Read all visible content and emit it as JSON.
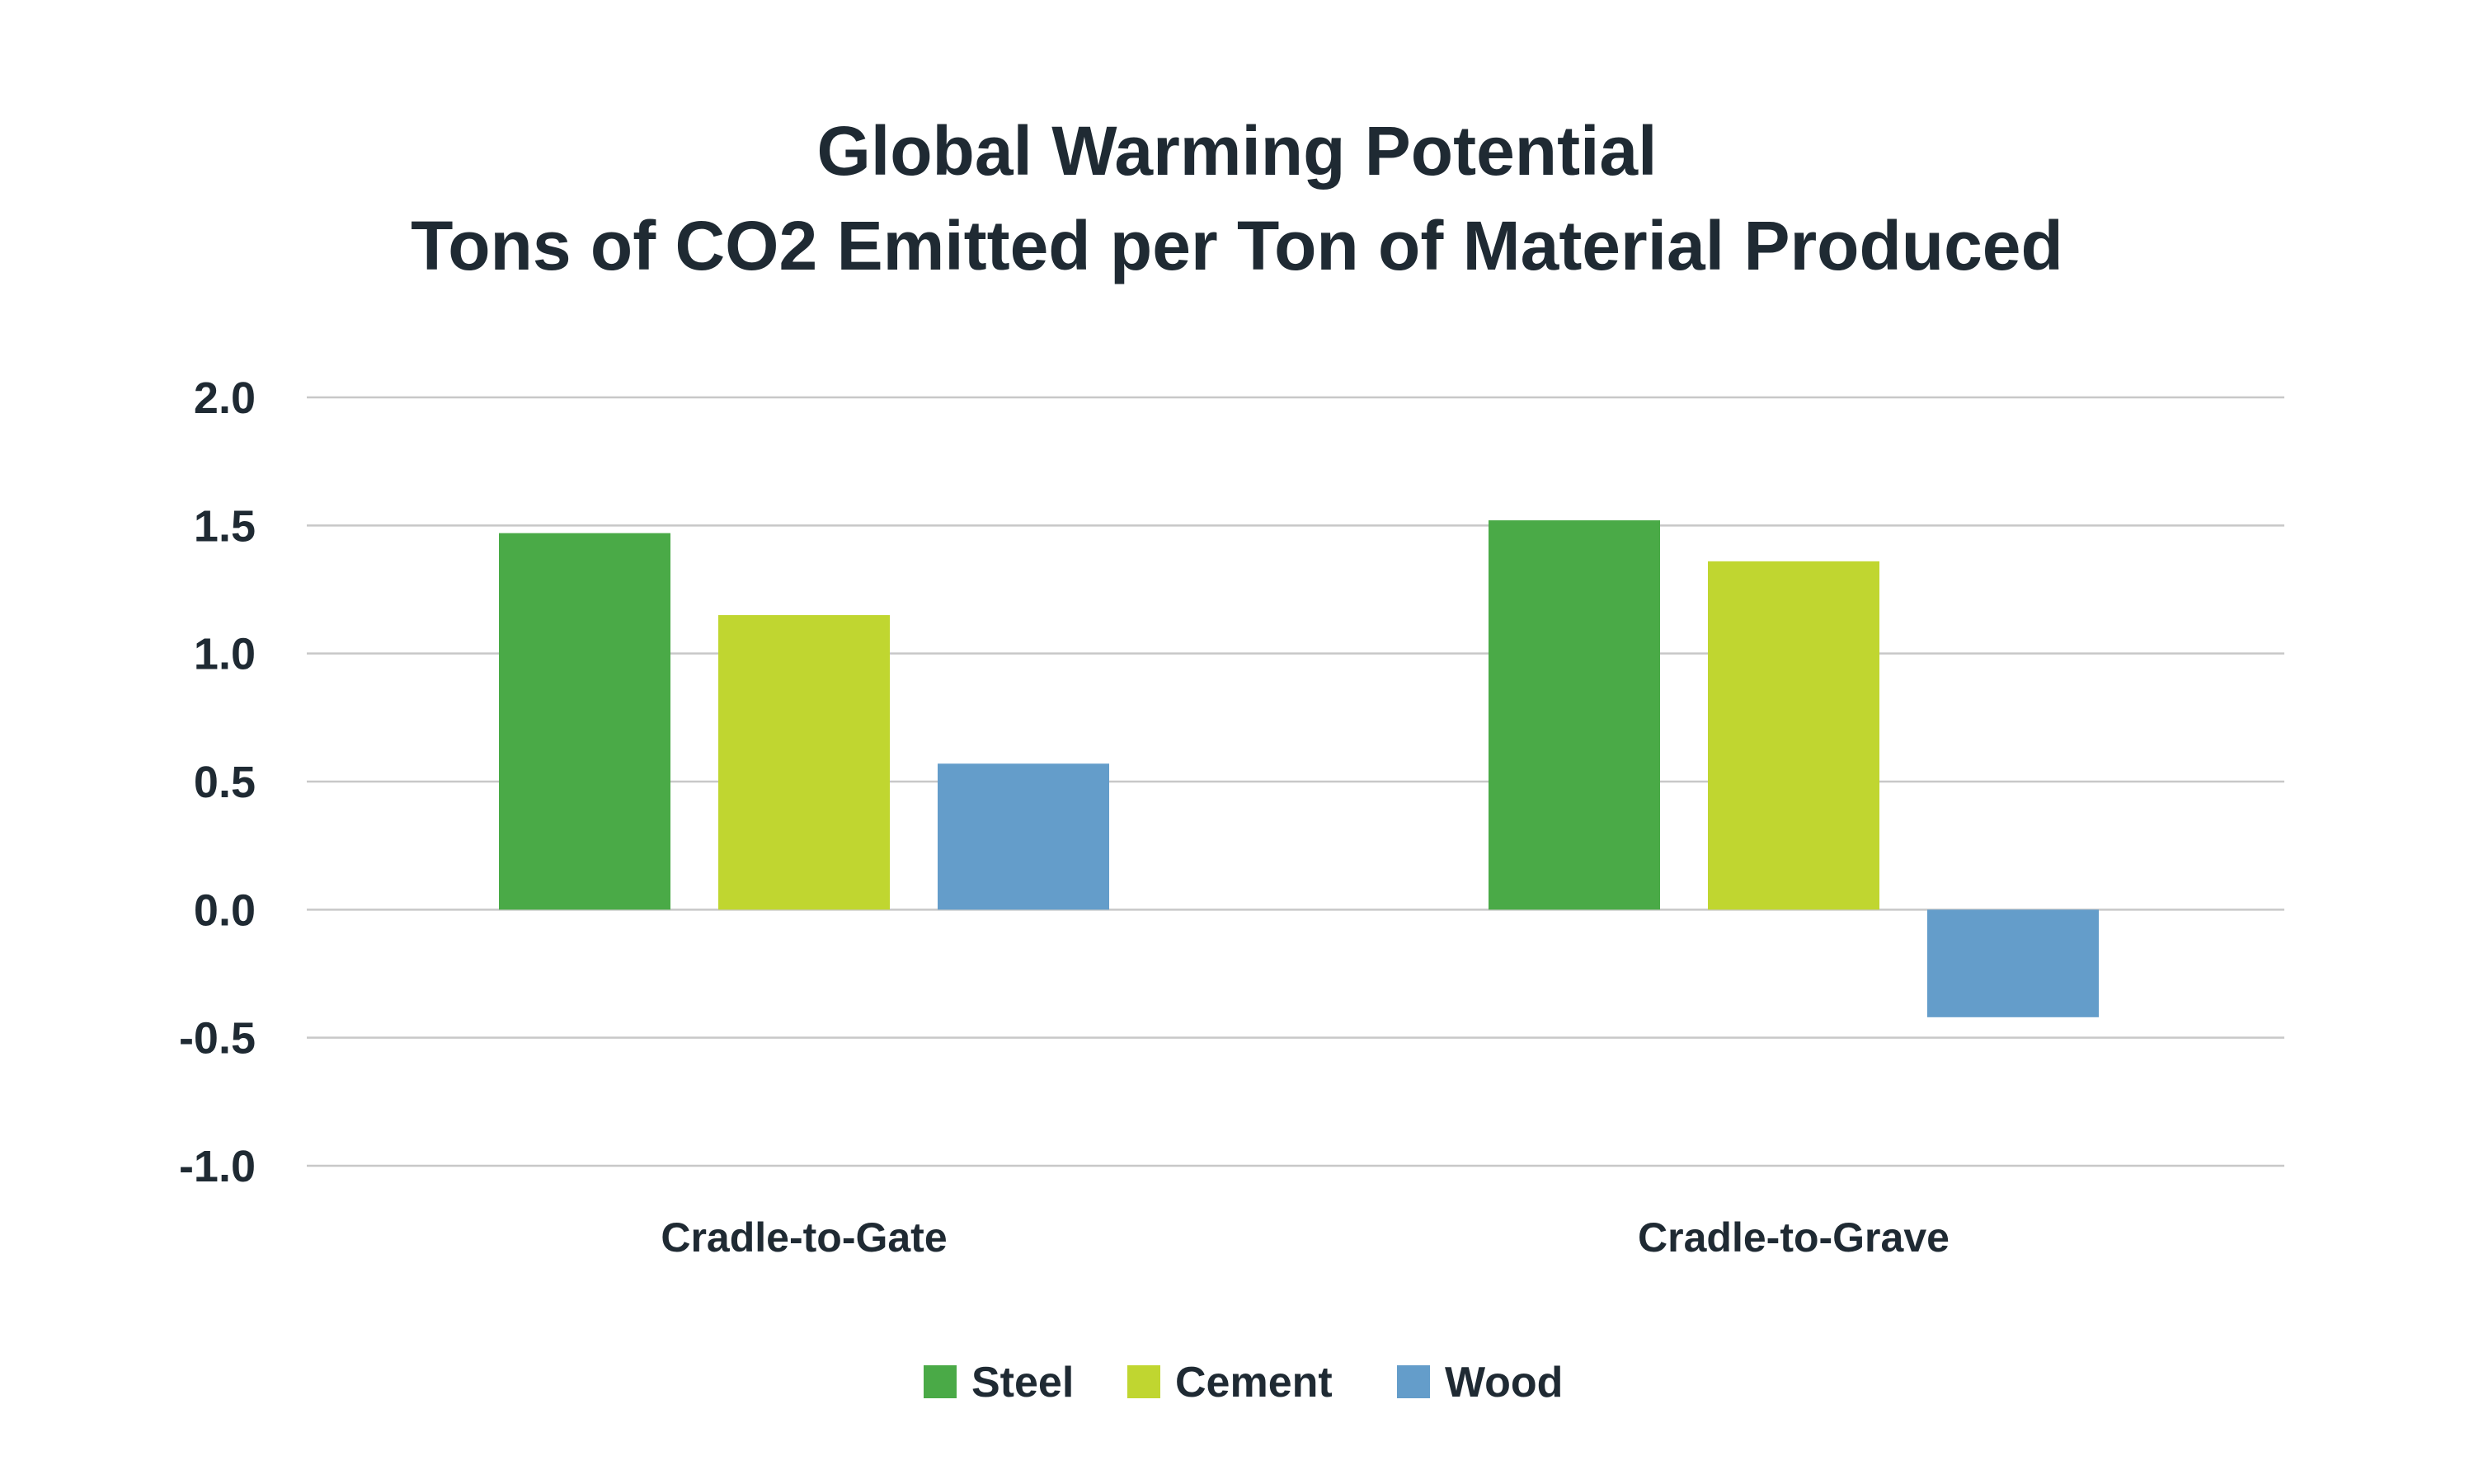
{
  "chart_data": {
    "type": "bar",
    "title": "Global Warming Potential",
    "subtitle": "Tons of CO2 Emitted per Ton of Material Produced",
    "xlabel": "",
    "ylabel": "",
    "categories": [
      "Cradle-to-Gate",
      "Cradle-to-Grave"
    ],
    "series": [
      {
        "name": "Steel",
        "color": "#4aaa47",
        "values": [
          1.47,
          1.52
        ]
      },
      {
        "name": "Cement",
        "color": "#c0d630",
        "values": [
          1.15,
          1.36
        ]
      },
      {
        "name": "Wood",
        "color": "#649dca",
        "values": [
          0.57,
          -0.42
        ]
      }
    ],
    "ylim": [
      -1.0,
      2.0
    ],
    "yticks": [
      2.0,
      1.5,
      1.0,
      0.5,
      0.0,
      -0.5,
      -1.0
    ],
    "ytick_labels": [
      "2.0",
      "1.5",
      "1.0",
      "0.5",
      "0.0",
      "-0.5",
      "-1.0"
    ],
    "grid": true,
    "legend_position": "bottom-center",
    "text_color": "#1f2a33",
    "grid_color": "#c8c8c8"
  }
}
